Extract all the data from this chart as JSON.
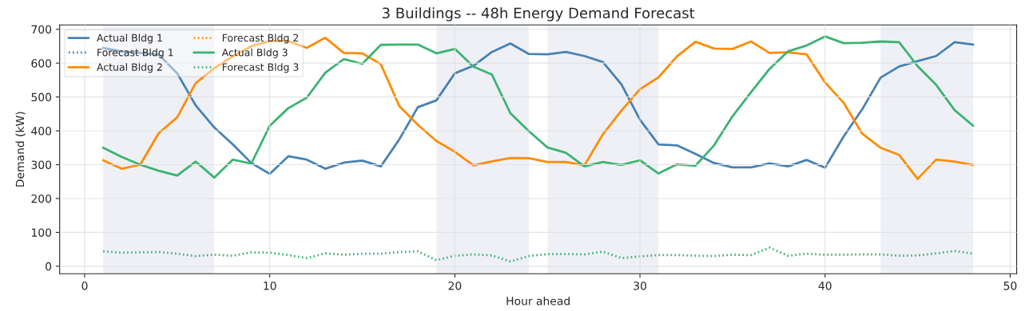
{
  "chart_data": {
    "type": "line",
    "title": "3 Buildings -- 48h Energy Demand Forecast",
    "xlabel": "Hour ahead",
    "ylabel": "Demand (kW)",
    "x": [
      1,
      2,
      3,
      4,
      5,
      6,
      7,
      8,
      9,
      10,
      11,
      12,
      13,
      14,
      15,
      16,
      17,
      18,
      19,
      20,
      21,
      22,
      23,
      24,
      25,
      26,
      27,
      28,
      29,
      30,
      31,
      32,
      33,
      34,
      35,
      36,
      37,
      38,
      39,
      40,
      41,
      42,
      43,
      44,
      45,
      46,
      47,
      48
    ],
    "series": [
      {
        "name": "Actual Bldg 1",
        "color": "#4682b4",
        "line_style": "solid",
        "values": [
          645,
          635,
          630,
          625,
          570,
          475,
          410,
          360,
          305,
          273,
          325,
          315,
          288,
          306,
          312,
          295,
          375,
          470,
          490,
          570,
          592,
          633,
          658,
          627,
          626,
          633,
          621,
          603,
          537,
          433,
          360,
          357,
          332,
          305,
          292,
          292,
          304,
          295,
          314,
          291,
          383,
          463,
          557,
          590,
          606,
          621,
          662,
          655
        ]
      },
      {
        "name": "Forecast Bldg 1",
        "color": "#4682b4",
        "line_style": "dotted",
        "values": [
          null,
          null,
          null,
          null,
          null,
          null,
          null,
          null,
          null,
          null,
          null,
          null,
          null,
          null,
          null,
          null,
          null,
          null,
          null,
          null,
          null,
          null,
          null,
          null,
          null,
          null,
          null,
          null,
          null,
          null,
          null,
          null,
          null,
          null,
          null,
          null,
          null,
          null,
          null,
          null,
          null,
          null,
          null,
          null,
          null,
          null,
          null,
          null
        ]
      },
      {
        "name": "Actual Bldg 2",
        "color": "#ff8c00",
        "line_style": "solid",
        "values": [
          313,
          288,
          300,
          393,
          440,
          541,
          585,
          620,
          650,
          665,
          665,
          645,
          675,
          630,
          629,
          597,
          473,
          418,
          370,
          338,
          298,
          310,
          320,
          319,
          308,
          308,
          298,
          390,
          460,
          523,
          558,
          620,
          663,
          643,
          642,
          664,
          630,
          632,
          626,
          543,
          483,
          392,
          350,
          329,
          258,
          315,
          309,
          299
        ]
      },
      {
        "name": "Forecast Bldg 2",
        "color": "#ff8c00",
        "line_style": "dotted",
        "values": [
          null,
          null,
          null,
          null,
          null,
          null,
          null,
          null,
          null,
          null,
          null,
          null,
          null,
          null,
          null,
          null,
          null,
          null,
          null,
          null,
          null,
          null,
          null,
          null,
          null,
          null,
          null,
          null,
          null,
          null,
          null,
          null,
          null,
          null,
          null,
          null,
          null,
          null,
          null,
          null,
          null,
          null,
          null,
          null,
          null,
          null,
          null,
          null
        ]
      },
      {
        "name": "Actual Bldg 3",
        "color": "#3cb371",
        "line_style": "solid",
        "values": [
          350,
          323,
          300,
          282,
          268,
          309,
          262,
          315,
          303,
          415,
          467,
          498,
          572,
          612,
          598,
          654,
          655,
          655,
          629,
          642,
          590,
          566,
          452,
          399,
          351,
          335,
          295,
          308,
          299,
          313,
          274,
          301,
          297,
          357,
          443,
          514,
          583,
          635,
          652,
          679,
          659,
          660,
          664,
          662,
          591,
          536,
          461,
          415
        ]
      },
      {
        "name": "Forecast Bldg 3",
        "color": "#3cb371",
        "line_style": "dotted",
        "values": [
          44,
          40,
          41,
          42,
          37,
          30,
          34,
          31,
          41,
          40,
          33,
          24,
          38,
          34,
          37,
          37,
          42,
          44,
          18,
          31,
          35,
          32,
          14,
          30,
          36,
          36,
          35,
          43,
          24,
          29,
          33,
          33,
          31,
          30,
          34,
          33,
          55,
          31,
          37,
          34,
          34,
          35,
          35,
          31,
          32,
          38,
          45,
          37
        ]
      }
    ],
    "bands": [
      {
        "axis": "x",
        "from": 1,
        "to": 7,
        "color": "#eef0f6"
      },
      {
        "axis": "x",
        "from": 19,
        "to": 24,
        "color": "#eef0f6"
      },
      {
        "axis": "x",
        "from": 25,
        "to": 31,
        "color": "#eef0f6"
      },
      {
        "axis": "x",
        "from": 43,
        "to": 48,
        "color": "#eef0f6"
      }
    ],
    "xlim": [
      -1.35,
      50.35
    ],
    "xticks": [
      0,
      10,
      20,
      30,
      40,
      50
    ],
    "ylim": [
      -22,
      713
    ],
    "yticks": [
      0,
      100,
      200,
      300,
      400,
      500,
      600,
      700
    ],
    "grid": true,
    "legend": "top left"
  }
}
